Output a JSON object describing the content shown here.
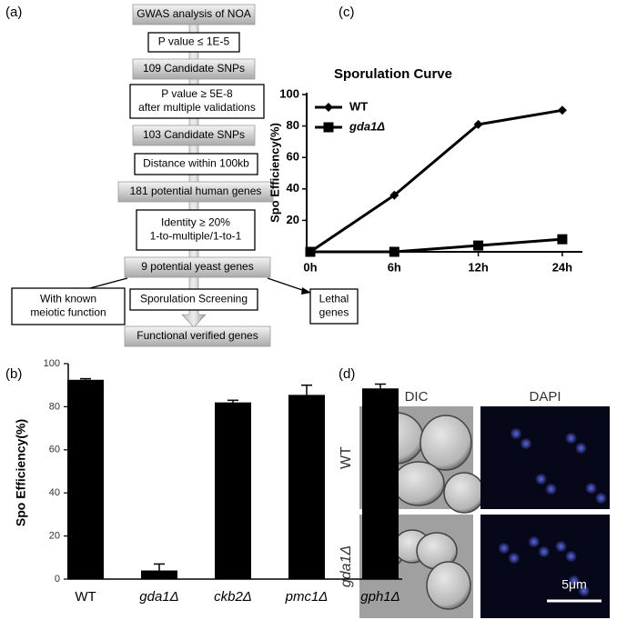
{
  "panel_labels": [
    "(a)",
    "(b)",
    "(c)",
    "(d)"
  ],
  "flowchart": {
    "steps": [
      {
        "lines": [
          "GWAS analysis of NOA"
        ],
        "style": "gray"
      },
      {
        "lines": [
          "P value ≤ 1E-5"
        ],
        "style": "white"
      },
      {
        "lines": [
          "109 Candidate SNPs"
        ],
        "style": "gray"
      },
      {
        "lines": [
          "P value ≥ 5E-8",
          "after multiple validations"
        ],
        "style": "white"
      },
      {
        "lines": [
          "103 Candidate SNPs"
        ],
        "style": "gray"
      },
      {
        "lines": [
          "Distance within 100kb"
        ],
        "style": "white"
      },
      {
        "lines": [
          "181 potential human genes"
        ],
        "style": "gray"
      },
      {
        "lines": [
          "Identity ≥ 20%",
          "1-to-multiple/1-to-1"
        ],
        "style": "white"
      },
      {
        "lines": [
          "9   potential yeast genes"
        ],
        "style": "gray"
      },
      {
        "lines": [
          "Sporulation Screening"
        ],
        "style": "white"
      },
      {
        "lines": [
          "Functional verified genes"
        ],
        "style": "gray"
      }
    ],
    "branches": [
      {
        "lines": [
          "With known",
          "meiotic function"
        ]
      },
      {
        "lines": [
          "Lethal",
          "genes"
        ]
      }
    ]
  },
  "chart_data": [
    {
      "type": "line",
      "title": "Sporulation Curve",
      "y_label": "Spo Efficiency(%)",
      "categories": [
        "0h",
        "6h",
        "12h",
        "24h"
      ],
      "series": [
        {
          "name": "WT",
          "color": "#000000",
          "marker": "diamond",
          "values": [
            0,
            36,
            81,
            90
          ]
        },
        {
          "name": "gda1Δ",
          "color": "#000000",
          "marker": "square",
          "values": [
            0,
            0,
            4,
            8
          ]
        }
      ],
      "ylim": [
        0,
        100
      ],
      "yticks": [
        20,
        40,
        60,
        80,
        100
      ],
      "legend": "top-left"
    },
    {
      "type": "bar",
      "y_label": "Spo Efficiency(%)",
      "categories": [
        "WT",
        "gda1Δ",
        "ckb2Δ",
        "pmc1Δ",
        "gph1Δ"
      ],
      "values": [
        92.5,
        4,
        82,
        85.5,
        88.5
      ],
      "errors": [
        0.5,
        3,
        1,
        4.5,
        2
      ],
      "color": "#000000",
      "ylim": [
        0,
        100
      ],
      "yticks": [
        0,
        20,
        40,
        60,
        80,
        100
      ]
    }
  ],
  "micrograph": {
    "columns": [
      "DIC",
      "DAPI"
    ],
    "rows": [
      "WT",
      "gda1Δ"
    ],
    "scale_bar": "5μm"
  }
}
